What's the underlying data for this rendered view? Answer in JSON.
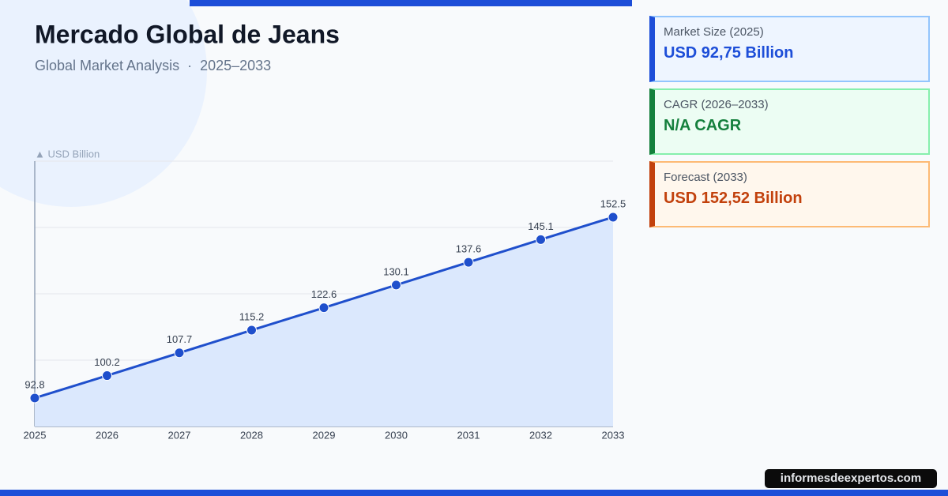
{
  "chart_data": {
    "type": "line",
    "title": "Mercado Global de Jeans",
    "subtitle": "Global Market Analysis  ·  2025–2033",
    "y_label": "▲ USD Billion",
    "categories": [
      "2025",
      "2026",
      "2027",
      "2028",
      "2029",
      "2030",
      "2031",
      "2032",
      "2033"
    ],
    "values": [
      92.8,
      100.2,
      107.7,
      115.2,
      122.6,
      130.1,
      137.6,
      145.1,
      152.5
    ],
    "color": "#1f4fcc",
    "area_color": "#dbe8fd",
    "ylim": [
      83.4,
      171
    ],
    "grid": true
  },
  "cards": [
    {
      "label": "Market Size (2025)",
      "value": "USD 92,75 Billion",
      "color": "#1d4ed8"
    },
    {
      "label": "CAGR (2026–2033)",
      "value": "N/A CAGR",
      "color": "#15803d"
    },
    {
      "label": "Forecast (2033)",
      "value": "USD 152,52 Billion",
      "color": "#c2410c"
    }
  ],
  "footer": "informesdeexpertos.com"
}
